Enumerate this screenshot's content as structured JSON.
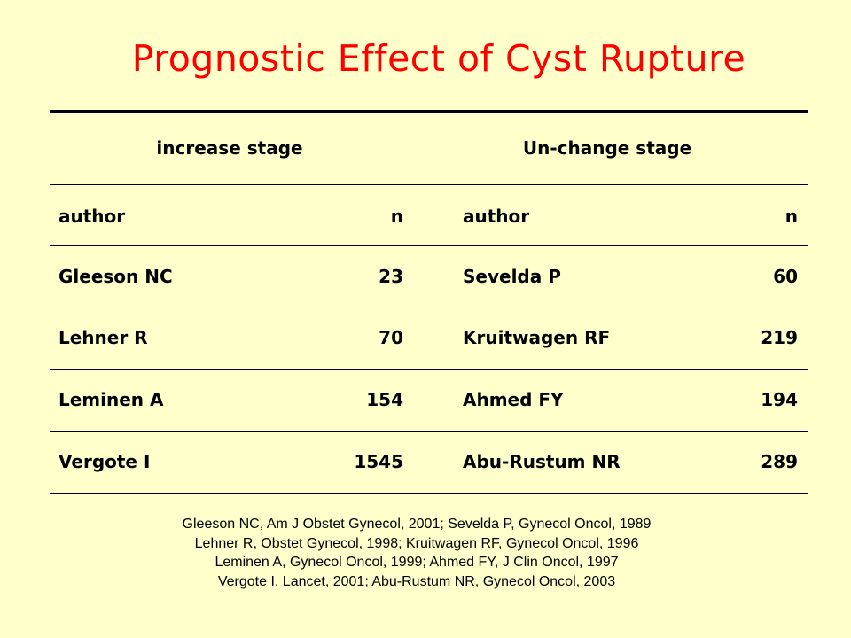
{
  "title": "Prognostic Effect of Cyst Rupture",
  "table": {
    "groups": [
      "increase stage",
      "Un-change stage"
    ],
    "columns": {
      "left_author": "author",
      "left_n": "n",
      "right_author": "author",
      "right_n": "n"
    },
    "rows": [
      {
        "left_author": "Gleeson NC",
        "left_n": "23",
        "right_author": "Sevelda P",
        "right_n": "60"
      },
      {
        "left_author": "Lehner R",
        "left_n": "70",
        "right_author": "Kruitwagen RF",
        "right_n": "219"
      },
      {
        "left_author": "Leminen A",
        "left_n": "154",
        "right_author": "Ahmed FY",
        "right_n": "194"
      },
      {
        "left_author": "Vergote I",
        "left_n": "1545",
        "right_author": "Abu-Rustum NR",
        "right_n": "289"
      }
    ]
  },
  "references": [
    "Gleeson NC, Am J Obstet Gynecol, 2001; Sevelda P, Gynecol Oncol, 1989",
    "Lehner R, Obstet Gynecol, 1998; Kruitwagen RF, Gynecol Oncol, 1996",
    "Leminen A, Gynecol Oncol, 1999; Ahmed FY, J Clin Oncol, 1997",
    "Vergote I, Lancet, 2001; Abu-Rustum NR, Gynecol Oncol, 2003"
  ]
}
